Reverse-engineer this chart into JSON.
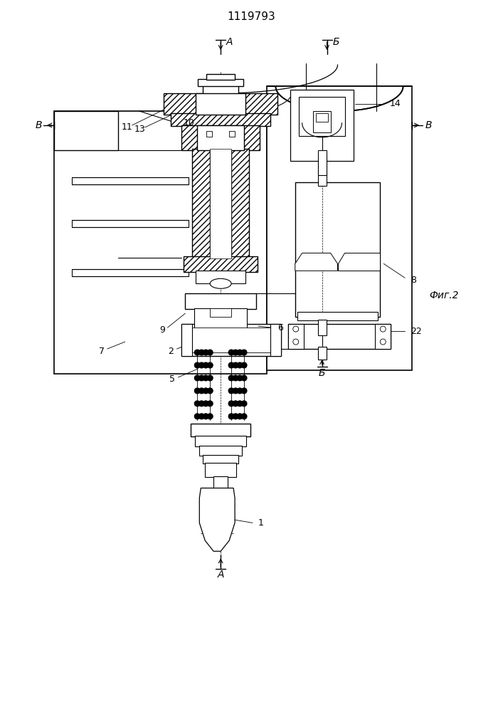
{
  "title": "1119793",
  "fig_label": "Фиг.2",
  "background": "#ffffff",
  "labels": {
    "title": "1119793",
    "fig": "Фиг.2",
    "num_1": "1",
    "num_2": "2",
    "num_5": "5",
    "num_6": "6",
    "num_7": "7",
    "num_8": "8",
    "num_9": "9",
    "num_10": "10",
    "num_11": "11",
    "num_13": "13",
    "num_14": "14",
    "num_22": "22"
  },
  "arrow_labels": {
    "A_top": "A",
    "B_top": "Б",
    "B_left": "В",
    "B_right": "В",
    "A_bot": "A",
    "B_bot": "Б"
  }
}
